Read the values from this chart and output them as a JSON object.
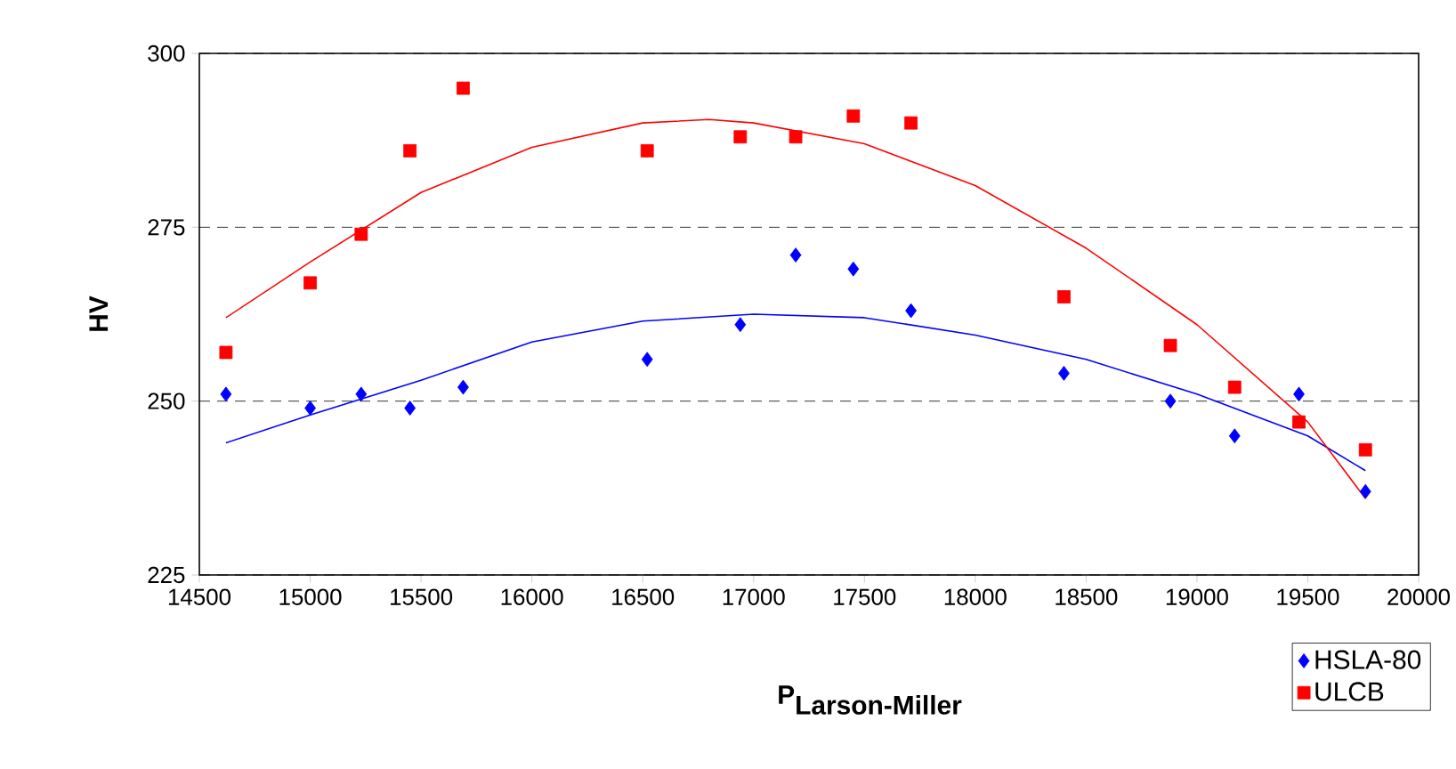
{
  "chart_data": {
    "type": "scatter",
    "xlabel": "\\textbf{P}_{\\textbf{Larson-Miller}}",
    "ylabel": "HV",
    "xlim": [
      14500,
      20000
    ],
    "ylim": [
      225,
      300
    ],
    "xticks": [
      14500,
      15000,
      15500,
      16000,
      16500,
      17000,
      17500,
      18000,
      18500,
      19000,
      19500,
      20000
    ],
    "yticks": [
      225,
      250,
      275,
      300
    ],
    "grid": "y",
    "legend": "bottom right",
    "series": [
      {
        "name": "HSLA-80",
        "color": "#0000ff",
        "marker": "diamond",
        "x": [
          14620,
          15000,
          15230,
          15450,
          15690,
          16520,
          16940,
          17190,
          17450,
          17710,
          18400,
          18880,
          19170,
          19460,
          19760
        ],
        "values": [
          251,
          249,
          251,
          249,
          252,
          256,
          261,
          271,
          269,
          263,
          254,
          250,
          245,
          251,
          237
        ]
      },
      {
        "name": "ULCB",
        "color": "#ff0000",
        "marker": "square",
        "x": [
          14620,
          15000,
          15230,
          15450,
          15690,
          16520,
          16940,
          17190,
          17450,
          17710,
          18400,
          18880,
          19170,
          19460,
          19760
        ],
        "values": [
          257,
          267,
          274,
          286,
          295,
          286,
          288,
          288,
          291,
          290,
          265,
          258,
          252,
          247,
          243
        ]
      },
      {
        "type": "line",
        "color": "#0000ff",
        "marker": "none",
        "x": [
          14620,
          15000,
          15500,
          16000,
          16500,
          17000,
          17500,
          18000,
          18500,
          19000,
          19500,
          19760
        ],
        "values": [
          244,
          248,
          253,
          258.5,
          261.5,
          262.5,
          262,
          259.5,
          256,
          251,
          245,
          240
        ]
      },
      {
        "type": "line",
        "color": "#ff0000",
        "marker": "none",
        "x": [
          14620,
          15000,
          15500,
          16000,
          16500,
          16800,
          17000,
          17500,
          18000,
          18500,
          19000,
          19500,
          19760
        ],
        "values": [
          262,
          270,
          280,
          286.5,
          290,
          290.5,
          290,
          287,
          281,
          272,
          261,
          247,
          236
        ]
      }
    ]
  }
}
